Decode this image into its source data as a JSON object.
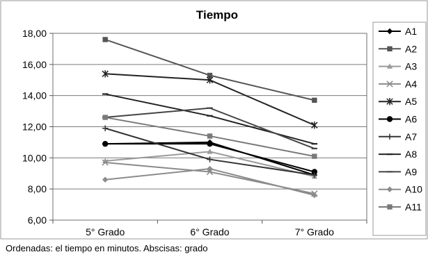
{
  "chart_data": {
    "type": "line",
    "title": "Tiempo",
    "caption": "Ordenadas: el tiempo en minutos. Abscisas: grado",
    "categories": [
      "5° Grado",
      "6° Grado",
      "7° Grado"
    ],
    "ylim": [
      6,
      18
    ],
    "yticks": [
      "6,00",
      "8,00",
      "10,00",
      "12,00",
      "14,00",
      "16,00",
      "18,00"
    ],
    "grid": "horizontal",
    "legend": "right",
    "series": [
      {
        "name": "A1",
        "values": [
          10.9,
          11.0,
          8.9
        ],
        "color": "#000000",
        "marker": "diamond"
      },
      {
        "name": "A2",
        "values": [
          17.6,
          15.3,
          13.7
        ],
        "color": "#555555",
        "marker": "square"
      },
      {
        "name": "A3",
        "values": [
          9.8,
          10.4,
          8.8
        ],
        "color": "#9a9a9a",
        "marker": "triangle"
      },
      {
        "name": "A4",
        "values": [
          9.7,
          9.1,
          7.7
        ],
        "color": "#8a8a8a",
        "marker": "x"
      },
      {
        "name": "A5",
        "values": [
          15.4,
          15.0,
          12.1
        ],
        "color": "#222222",
        "marker": "star"
      },
      {
        "name": "A6",
        "values": [
          10.9,
          10.9,
          9.1
        ],
        "color": "#000000",
        "marker": "circle"
      },
      {
        "name": "A7",
        "values": [
          11.9,
          9.9,
          8.9
        ],
        "color": "#333333",
        "marker": "plus"
      },
      {
        "name": "A8",
        "values": [
          14.1,
          12.7,
          10.9
        ],
        "color": "#222222",
        "marker": "dash"
      },
      {
        "name": "A9",
        "values": [
          12.6,
          13.2,
          10.6
        ],
        "color": "#444444",
        "marker": "dash"
      },
      {
        "name": "A10",
        "values": [
          8.6,
          9.3,
          7.6
        ],
        "color": "#8c8c8c",
        "marker": "diamond"
      },
      {
        "name": "A11",
        "values": [
          12.6,
          11.4,
          10.1
        ],
        "color": "#7a7a7a",
        "marker": "square"
      }
    ]
  }
}
